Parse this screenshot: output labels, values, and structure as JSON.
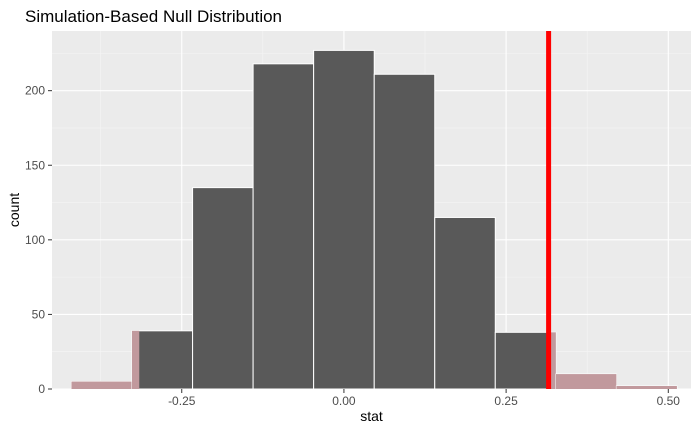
{
  "chart_data": {
    "type": "bar",
    "title": "Simulation-Based Null Distribution",
    "xlabel": "stat",
    "ylabel": "count",
    "xlim": [
      -0.45,
      0.535
    ],
    "ylim": [
      0,
      240
    ],
    "xticks": [
      -0.25,
      0.0,
      0.25,
      0.5
    ],
    "xtick_labels": [
      "-0.25",
      "0.00",
      "0.25",
      "0.50"
    ],
    "yticks": [
      0,
      50,
      100,
      150,
      200
    ],
    "ytick_labels": [
      "0",
      "50",
      "100",
      "150",
      "200"
    ],
    "bin_edges": [
      -0.42,
      -0.3267,
      -0.2333,
      -0.14,
      -0.0467,
      0.0467,
      0.14,
      0.2333,
      0.3267,
      0.42,
      0.5133
    ],
    "values": [
      5,
      39,
      135,
      218,
      227,
      211,
      115,
      38,
      10,
      2
    ],
    "shaded_region": {
      "description": "bars shaded beyond observed statistic",
      "left_of": -0.3155,
      "right_of": 0.3155
    },
    "observed_stat": 0.3155,
    "grid": true,
    "colors": {
      "bar": "#595959",
      "bar_border": "#ffffff",
      "shade": "#c1999d",
      "observed_line": "#ff0000",
      "panel": "#ebebeb",
      "grid_major": "#ffffff",
      "grid_minor": "#f5f5f5",
      "text": "#000000",
      "tick_text": "#4d4d4d",
      "tick_mark": "#333333"
    }
  }
}
